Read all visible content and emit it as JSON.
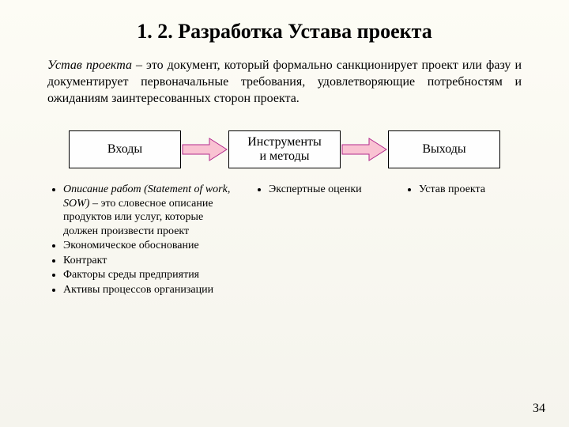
{
  "title": "1. 2. Разработка Устава проекта",
  "paragraph_term": "Устав проекта",
  "paragraph_rest": " – это документ, который формально санкционирует проект или фазу и документирует первоначальные требования, удовлетворяющие потребностям и ожиданиям заинтересованных сторон проекта.",
  "boxes": {
    "inputs": "Входы",
    "methods": "Инструменты\nи методы",
    "outputs": "Выходы"
  },
  "arrow": {
    "fill": "#f9c2d2",
    "stroke": "#b3298c"
  },
  "columns": {
    "inputs": [
      {
        "text_ital": "Описание работ (Statement of work, SOW)",
        "text_rest": " – это словесное описание продуктов или услуг, которые должен произвести проект"
      },
      {
        "text_rest": "Экономическое обоснование"
      },
      {
        "text_rest": "Контракт"
      },
      {
        "text_rest": "Факторы среды предприятия"
      },
      {
        "text_rest": "Активы процессов организации"
      }
    ],
    "methods": [
      {
        "text_rest": "Экспертные оценки"
      }
    ],
    "outputs": [
      {
        "text_rest": "Устав проекта"
      }
    ]
  },
  "page_number": "34"
}
